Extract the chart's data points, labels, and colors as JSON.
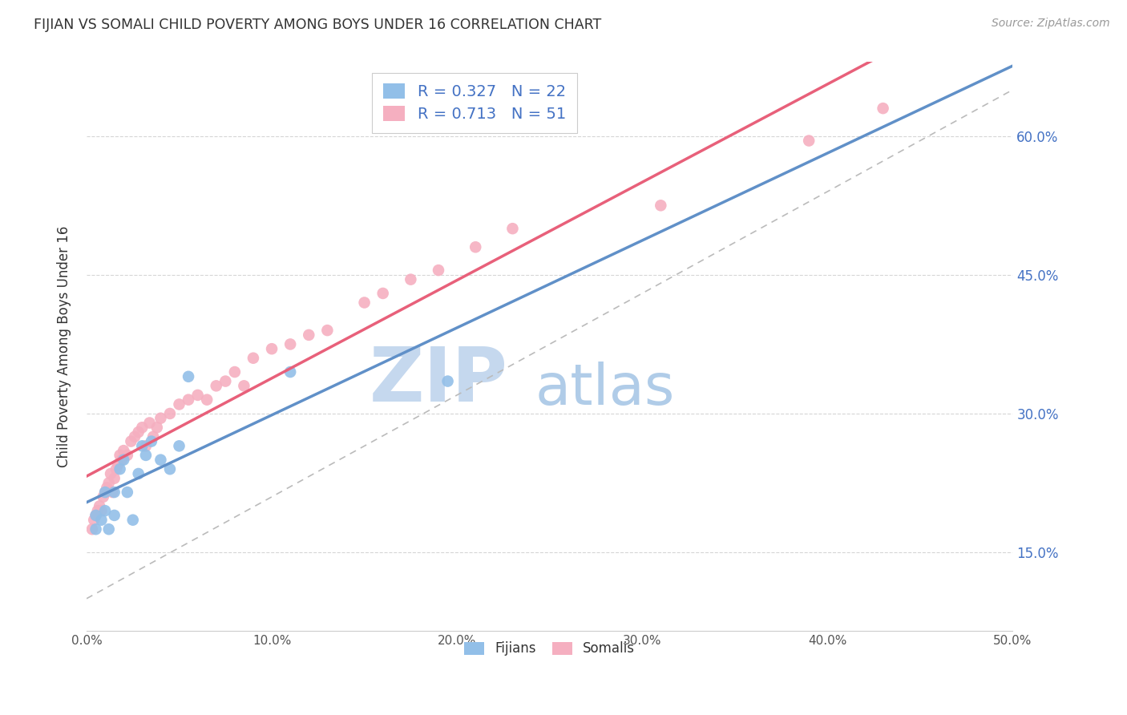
{
  "title": "FIJIAN VS SOMALI CHILD POVERTY AMONG BOYS UNDER 16 CORRELATION CHART",
  "source": "Source: ZipAtlas.com",
  "ylabel": "Child Poverty Among Boys Under 16",
  "xlim": [
    0.0,
    0.5
  ],
  "ylim": [
    0.065,
    0.68
  ],
  "xticks": [
    0.0,
    0.1,
    0.2,
    0.3,
    0.4,
    0.5
  ],
  "xticklabels": [
    "0.0%",
    "10.0%",
    "20.0%",
    "30.0%",
    "40.0%",
    "50.0%"
  ],
  "yticks": [
    0.15,
    0.3,
    0.45,
    0.6
  ],
  "yticklabels": [
    "15.0%",
    "30.0%",
    "45.0%",
    "60.0%"
  ],
  "fijian_color": "#92bfe8",
  "somali_color": "#f5afc0",
  "fijian_line_color": "#6090c8",
  "somali_line_color": "#e8607a",
  "fijian_R": 0.327,
  "fijian_N": 22,
  "somali_R": 0.713,
  "somali_N": 51,
  "legend_label_fijian": "Fijians",
  "legend_label_somali": "Somalis",
  "watermark_zip": "ZIP",
  "watermark_atlas": "atlas",
  "watermark_color_zip": "#c5d8ee",
  "watermark_color_atlas": "#b0cce8",
  "grid_color": "#cccccc",
  "ref_line_color": "#bbbbbb",
  "fijian_x": [
    0.005,
    0.005,
    0.008,
    0.01,
    0.01,
    0.012,
    0.015,
    0.015,
    0.018,
    0.02,
    0.022,
    0.025,
    0.028,
    0.03,
    0.032,
    0.035,
    0.04,
    0.045,
    0.05,
    0.055,
    0.11,
    0.195
  ],
  "fijian_y": [
    0.175,
    0.19,
    0.185,
    0.195,
    0.215,
    0.175,
    0.19,
    0.215,
    0.24,
    0.25,
    0.215,
    0.185,
    0.235,
    0.265,
    0.255,
    0.27,
    0.25,
    0.24,
    0.265,
    0.34,
    0.345,
    0.335
  ],
  "somali_x": [
    0.003,
    0.004,
    0.005,
    0.006,
    0.007,
    0.008,
    0.009,
    0.01,
    0.011,
    0.012,
    0.013,
    0.014,
    0.015,
    0.016,
    0.017,
    0.018,
    0.019,
    0.02,
    0.022,
    0.024,
    0.026,
    0.028,
    0.03,
    0.032,
    0.034,
    0.036,
    0.038,
    0.04,
    0.045,
    0.05,
    0.055,
    0.06,
    0.065,
    0.07,
    0.075,
    0.08,
    0.085,
    0.09,
    0.1,
    0.11,
    0.12,
    0.13,
    0.15,
    0.16,
    0.175,
    0.19,
    0.21,
    0.23,
    0.31,
    0.39,
    0.43
  ],
  "somali_y": [
    0.175,
    0.185,
    0.19,
    0.195,
    0.2,
    0.195,
    0.21,
    0.215,
    0.22,
    0.225,
    0.235,
    0.215,
    0.23,
    0.24,
    0.245,
    0.255,
    0.25,
    0.26,
    0.255,
    0.27,
    0.275,
    0.28,
    0.285,
    0.265,
    0.29,
    0.275,
    0.285,
    0.295,
    0.3,
    0.31,
    0.315,
    0.32,
    0.315,
    0.33,
    0.335,
    0.345,
    0.33,
    0.36,
    0.37,
    0.375,
    0.385,
    0.39,
    0.42,
    0.43,
    0.445,
    0.455,
    0.48,
    0.5,
    0.525,
    0.595,
    0.63
  ]
}
